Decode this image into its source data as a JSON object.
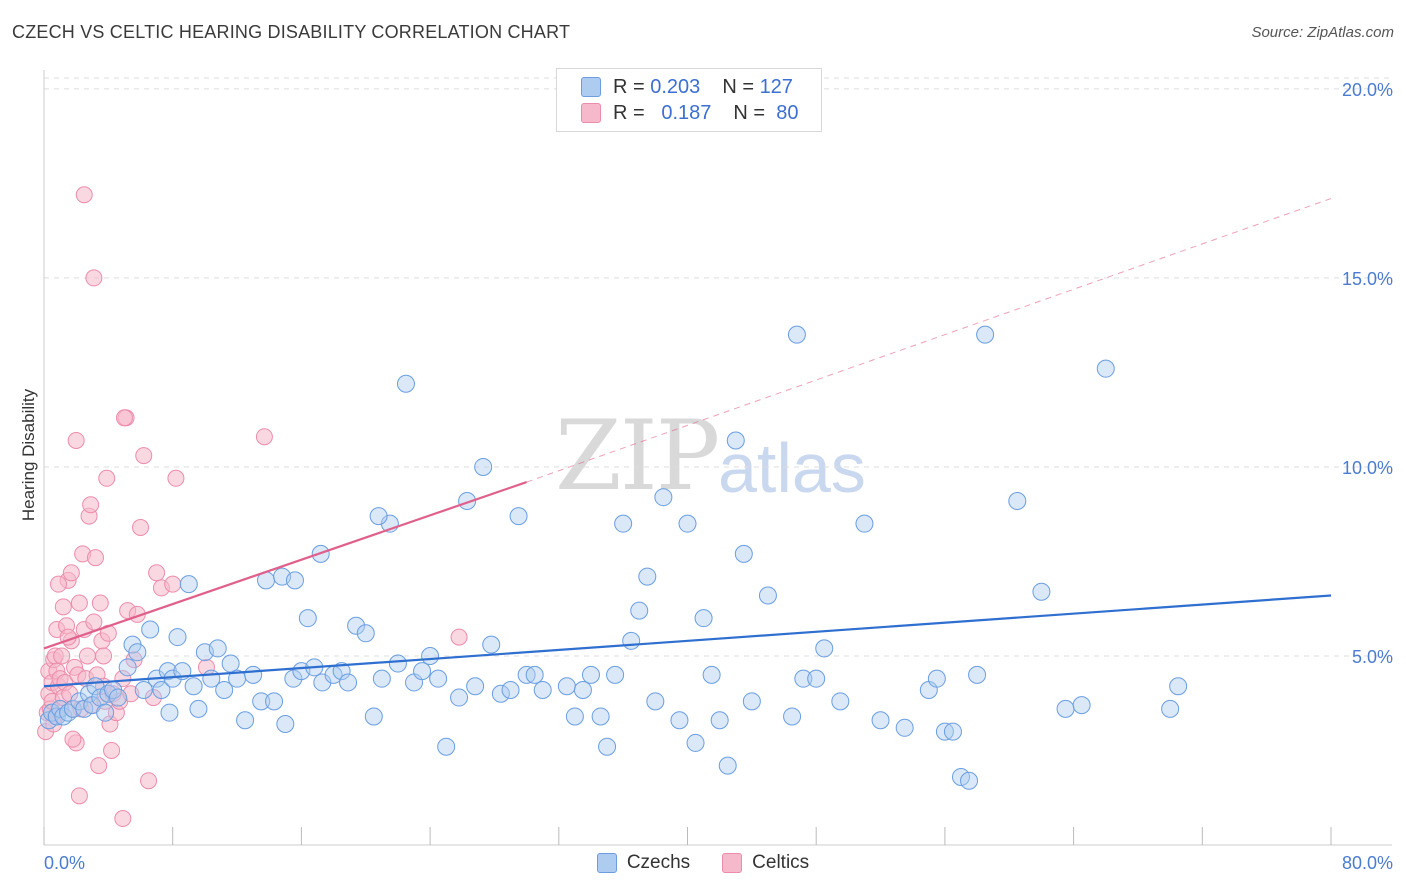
{
  "title": "CZECH VS CELTIC HEARING DISABILITY CORRELATION CHART",
  "source": "Source: ZipAtlas.com",
  "watermark": {
    "zip": "ZIP",
    "atlas": "atlas"
  },
  "legend": {
    "r_label": "R =",
    "n_label": "N =",
    "czechs": {
      "r": "0.203",
      "n": "127"
    },
    "celtics": {
      "r": "0.187",
      "n": "80"
    }
  },
  "bottom_legend": {
    "czechs": "Czechs",
    "celtics": "Celtics"
  },
  "colors": {
    "czechs_fill": "#aecbf0",
    "czechs_stroke": "#6a9ee0",
    "czechs_line": "#2f6fd0",
    "celtics_fill": "#f6b8cb",
    "celtics_stroke": "#ec8cab",
    "celtics_line": "#e0608c",
    "tick_text": "#4a7ccf",
    "grid": "#dddddd"
  },
  "chart_data": {
    "type": "scatter",
    "title": "CZECH VS CELTIC HEARING DISABILITY CORRELATION CHART",
    "xlabel": "",
    "ylabel": "Hearing Disability",
    "xlim": [
      0,
      80
    ],
    "ylim": [
      0,
      20.5
    ],
    "x_tick_labels": [
      "0.0%",
      "80.0%"
    ],
    "y_ticks": [
      5,
      10,
      15,
      20
    ],
    "y_tick_labels": [
      "5.0%",
      "10.0%",
      "15.0%",
      "20.0%"
    ],
    "grid": true,
    "legend_position": "top-center",
    "series": [
      {
        "name": "Czechs",
        "r": 0.203,
        "n": 127,
        "trend": {
          "x0": 0,
          "y0": 4.2,
          "x1": 80,
          "y1": 6.6
        },
        "points": [
          [
            0.3,
            3.3
          ],
          [
            0.5,
            3.5
          ],
          [
            0.8,
            3.4
          ],
          [
            1.0,
            3.6
          ],
          [
            1.2,
            3.4
          ],
          [
            1.5,
            3.5
          ],
          [
            1.8,
            3.6
          ],
          [
            2.2,
            3.8
          ],
          [
            2.5,
            3.6
          ],
          [
            2.8,
            4.0
          ],
          [
            3.0,
            3.7
          ],
          [
            3.2,
            4.2
          ],
          [
            3.5,
            3.9
          ],
          [
            3.8,
            3.5
          ],
          [
            4.0,
            4.0
          ],
          [
            4.3,
            4.1
          ],
          [
            4.6,
            3.9
          ],
          [
            5.2,
            4.7
          ],
          [
            5.5,
            5.3
          ],
          [
            5.8,
            5.1
          ],
          [
            6.2,
            4.1
          ],
          [
            6.6,
            5.7
          ],
          [
            7.0,
            4.4
          ],
          [
            7.3,
            4.1
          ],
          [
            7.7,
            4.6
          ],
          [
            8.0,
            4.4
          ],
          [
            8.3,
            5.5
          ],
          [
            8.6,
            4.6
          ],
          [
            9.0,
            6.9
          ],
          [
            9.3,
            4.2
          ],
          [
            9.6,
            3.6
          ],
          [
            10.0,
            5.1
          ],
          [
            10.4,
            4.4
          ],
          [
            10.8,
            5.2
          ],
          [
            11.2,
            4.1
          ],
          [
            11.6,
            4.8
          ],
          [
            12.0,
            4.4
          ],
          [
            12.5,
            3.3
          ],
          [
            13.0,
            4.5
          ],
          [
            13.5,
            3.8
          ],
          [
            13.8,
            7.0
          ],
          [
            14.3,
            3.8
          ],
          [
            14.8,
            7.1
          ],
          [
            15.0,
            3.2
          ],
          [
            15.5,
            4.4
          ],
          [
            16.0,
            4.6
          ],
          [
            16.4,
            6.0
          ],
          [
            16.8,
            4.7
          ],
          [
            17.3,
            4.3
          ],
          [
            18.0,
            4.5
          ],
          [
            18.5,
            4.6
          ],
          [
            18.9,
            4.3
          ],
          [
            19.4,
            5.8
          ],
          [
            20.0,
            5.6
          ],
          [
            20.5,
            3.4
          ],
          [
            21.0,
            4.4
          ],
          [
            21.5,
            8.5
          ],
          [
            22.0,
            4.8
          ],
          [
            22.5,
            12.2
          ],
          [
            23.0,
            4.3
          ],
          [
            23.5,
            4.6
          ],
          [
            24.0,
            5.0
          ],
          [
            24.5,
            4.4
          ],
          [
            25.0,
            2.6
          ],
          [
            25.8,
            3.9
          ],
          [
            26.3,
            9.1
          ],
          [
            26.8,
            4.2
          ],
          [
            27.3,
            10.0
          ],
          [
            27.8,
            5.3
          ],
          [
            28.4,
            4.0
          ],
          [
            29.0,
            4.1
          ],
          [
            29.5,
            8.7
          ],
          [
            30.0,
            4.5
          ],
          [
            30.5,
            4.5
          ],
          [
            31.0,
            4.1
          ],
          [
            32.5,
            4.2
          ],
          [
            33.0,
            3.4
          ],
          [
            33.5,
            4.1
          ],
          [
            34.0,
            4.5
          ],
          [
            34.6,
            3.4
          ],
          [
            35.0,
            2.6
          ],
          [
            35.5,
            4.5
          ],
          [
            36.0,
            8.5
          ],
          [
            36.5,
            5.4
          ],
          [
            37.0,
            6.2
          ],
          [
            37.5,
            7.1
          ],
          [
            38.0,
            3.8
          ],
          [
            38.5,
            9.2
          ],
          [
            39.5,
            3.3
          ],
          [
            40.0,
            8.5
          ],
          [
            40.5,
            2.7
          ],
          [
            41.0,
            6.0
          ],
          [
            41.5,
            4.5
          ],
          [
            42.0,
            3.3
          ],
          [
            42.5,
            2.1
          ],
          [
            43.0,
            10.7
          ],
          [
            43.5,
            7.7
          ],
          [
            44.0,
            3.8
          ],
          [
            45.0,
            6.6
          ],
          [
            46.5,
            3.4
          ],
          [
            46.8,
            13.5
          ],
          [
            47.2,
            4.4
          ],
          [
            48.0,
            4.4
          ],
          [
            48.5,
            5.2
          ],
          [
            49.5,
            3.8
          ],
          [
            51.0,
            8.5
          ],
          [
            52.0,
            3.3
          ],
          [
            53.5,
            3.1
          ],
          [
            55.0,
            4.1
          ],
          [
            55.5,
            4.4
          ],
          [
            56.0,
            3.0
          ],
          [
            56.5,
            3.0
          ],
          [
            57.0,
            1.8
          ],
          [
            57.5,
            1.7
          ],
          [
            58.0,
            4.5
          ],
          [
            58.5,
            13.5
          ],
          [
            60.5,
            9.1
          ],
          [
            62.0,
            6.7
          ],
          [
            63.5,
            3.6
          ],
          [
            64.5,
            3.7
          ],
          [
            66.0,
            12.6
          ],
          [
            70.0,
            3.6
          ],
          [
            70.5,
            4.2
          ],
          [
            17.2,
            7.7
          ],
          [
            20.8,
            8.7
          ],
          [
            7.8,
            3.5
          ],
          [
            15.6,
            7.0
          ]
        ]
      },
      {
        "name": "Celtics",
        "r": 0.187,
        "n": 80,
        "trend": {
          "x0": 0,
          "y0": 5.2,
          "x1": 30,
          "y1": 9.6
        },
        "trend_extension": {
          "x0": 30,
          "y0": 9.6,
          "x1": 80,
          "y1": 17.1
        },
        "points": [
          [
            0.1,
            3.0
          ],
          [
            0.2,
            3.5
          ],
          [
            0.3,
            4.0
          ],
          [
            0.3,
            4.6
          ],
          [
            0.4,
            3.6
          ],
          [
            0.5,
            3.8
          ],
          [
            0.5,
            4.3
          ],
          [
            0.6,
            4.9
          ],
          [
            0.7,
            5.0
          ],
          [
            0.7,
            3.4
          ],
          [
            0.8,
            4.6
          ],
          [
            0.8,
            5.7
          ],
          [
            0.9,
            4.2
          ],
          [
            1.0,
            3.6
          ],
          [
            1.0,
            4.4
          ],
          [
            1.1,
            5.0
          ],
          [
            1.2,
            3.9
          ],
          [
            1.2,
            6.3
          ],
          [
            1.3,
            4.3
          ],
          [
            1.4,
            5.8
          ],
          [
            1.5,
            7.0
          ],
          [
            1.6,
            4.0
          ],
          [
            1.7,
            5.4
          ],
          [
            1.7,
            7.2
          ],
          [
            1.8,
            3.6
          ],
          [
            1.9,
            4.7
          ],
          [
            2.0,
            2.7
          ],
          [
            2.0,
            10.7
          ],
          [
            2.1,
            4.5
          ],
          [
            2.2,
            6.4
          ],
          [
            2.3,
            3.6
          ],
          [
            2.4,
            7.7
          ],
          [
            2.5,
            5.7
          ],
          [
            2.6,
            4.4
          ],
          [
            2.7,
            5.0
          ],
          [
            2.8,
            8.7
          ],
          [
            2.9,
            9.0
          ],
          [
            3.0,
            3.7
          ],
          [
            3.1,
            5.9
          ],
          [
            3.2,
            7.6
          ],
          [
            3.3,
            4.5
          ],
          [
            3.4,
            2.1
          ],
          [
            3.5,
            6.4
          ],
          [
            3.6,
            5.4
          ],
          [
            3.7,
            4.2
          ],
          [
            3.8,
            3.8
          ],
          [
            3.9,
            9.7
          ],
          [
            4.0,
            5.6
          ],
          [
            4.1,
            3.2
          ],
          [
            4.2,
            2.5
          ],
          [
            4.3,
            4.0
          ],
          [
            4.5,
            3.5
          ],
          [
            4.7,
            3.8
          ],
          [
            4.9,
            4.4
          ],
          [
            5.1,
            11.3
          ],
          [
            5.2,
            6.2
          ],
          [
            5.4,
            4.0
          ],
          [
            5.6,
            4.9
          ],
          [
            5.8,
            6.1
          ],
          [
            6.0,
            8.4
          ],
          [
            6.2,
            10.3
          ],
          [
            6.5,
            1.7
          ],
          [
            6.8,
            3.9
          ],
          [
            7.0,
            7.2
          ],
          [
            7.3,
            6.8
          ],
          [
            8.2,
            9.7
          ],
          [
            8.0,
            6.9
          ],
          [
            10.1,
            4.7
          ],
          [
            13.7,
            10.8
          ],
          [
            25.8,
            5.5
          ],
          [
            2.5,
            17.2
          ],
          [
            3.1,
            15.0
          ],
          [
            5.0,
            11.3
          ],
          [
            2.2,
            1.3
          ],
          [
            4.9,
            0.7
          ],
          [
            1.5,
            5.5
          ],
          [
            0.9,
            6.9
          ],
          [
            1.8,
            2.8
          ],
          [
            3.7,
            5.0
          ],
          [
            0.6,
            3.2
          ]
        ]
      }
    ]
  }
}
